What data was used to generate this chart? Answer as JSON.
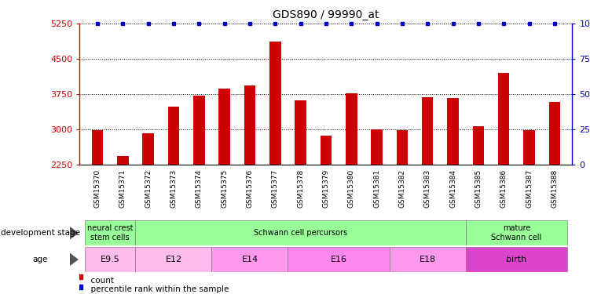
{
  "title": "GDS890 / 99990_at",
  "samples": [
    "GSM15370",
    "GSM15371",
    "GSM15372",
    "GSM15373",
    "GSM15374",
    "GSM15375",
    "GSM15376",
    "GSM15377",
    "GSM15378",
    "GSM15379",
    "GSM15380",
    "GSM15381",
    "GSM15382",
    "GSM15383",
    "GSM15384",
    "GSM15385",
    "GSM15386",
    "GSM15387",
    "GSM15388"
  ],
  "counts": [
    2980,
    2430,
    2920,
    3480,
    3720,
    3870,
    3940,
    4870,
    3620,
    2870,
    3760,
    3000,
    2980,
    3680,
    3660,
    3060,
    4200,
    2980,
    3580
  ],
  "bar_color": "#cc0000",
  "dot_color": "#0000cc",
  "ymin": 2250,
  "ymax": 5250,
  "yticks": [
    2250,
    3000,
    3750,
    4500,
    5250
  ],
  "right_yticks": [
    0,
    25,
    50,
    75,
    100
  ],
  "right_ytick_labels": [
    "0",
    "25",
    "50",
    "75",
    "100%"
  ],
  "dev_stage_labels": [
    "neural crest\nstem cells",
    "Schwann cell percursors",
    "mature\nSchwann cell"
  ],
  "dev_stage_sample_ranges": [
    [
      0,
      1
    ],
    [
      2,
      14
    ],
    [
      15,
      18
    ]
  ],
  "dev_stage_color": "#99ff99",
  "age_labels": [
    "E9.5",
    "E12",
    "E14",
    "E16",
    "E18",
    "birth"
  ],
  "age_sample_ranges": [
    [
      0,
      1
    ],
    [
      2,
      4
    ],
    [
      5,
      7
    ],
    [
      8,
      11
    ],
    [
      12,
      14
    ],
    [
      15,
      18
    ]
  ],
  "age_colors": [
    "#ffbbee",
    "#ffbbee",
    "#ff99ee",
    "#ff88ee",
    "#ff99ee",
    "#dd44cc"
  ],
  "xtick_bg_color": "#cccccc",
  "legend_count_color": "#cc0000",
  "legend_dot_color": "#0000cc"
}
